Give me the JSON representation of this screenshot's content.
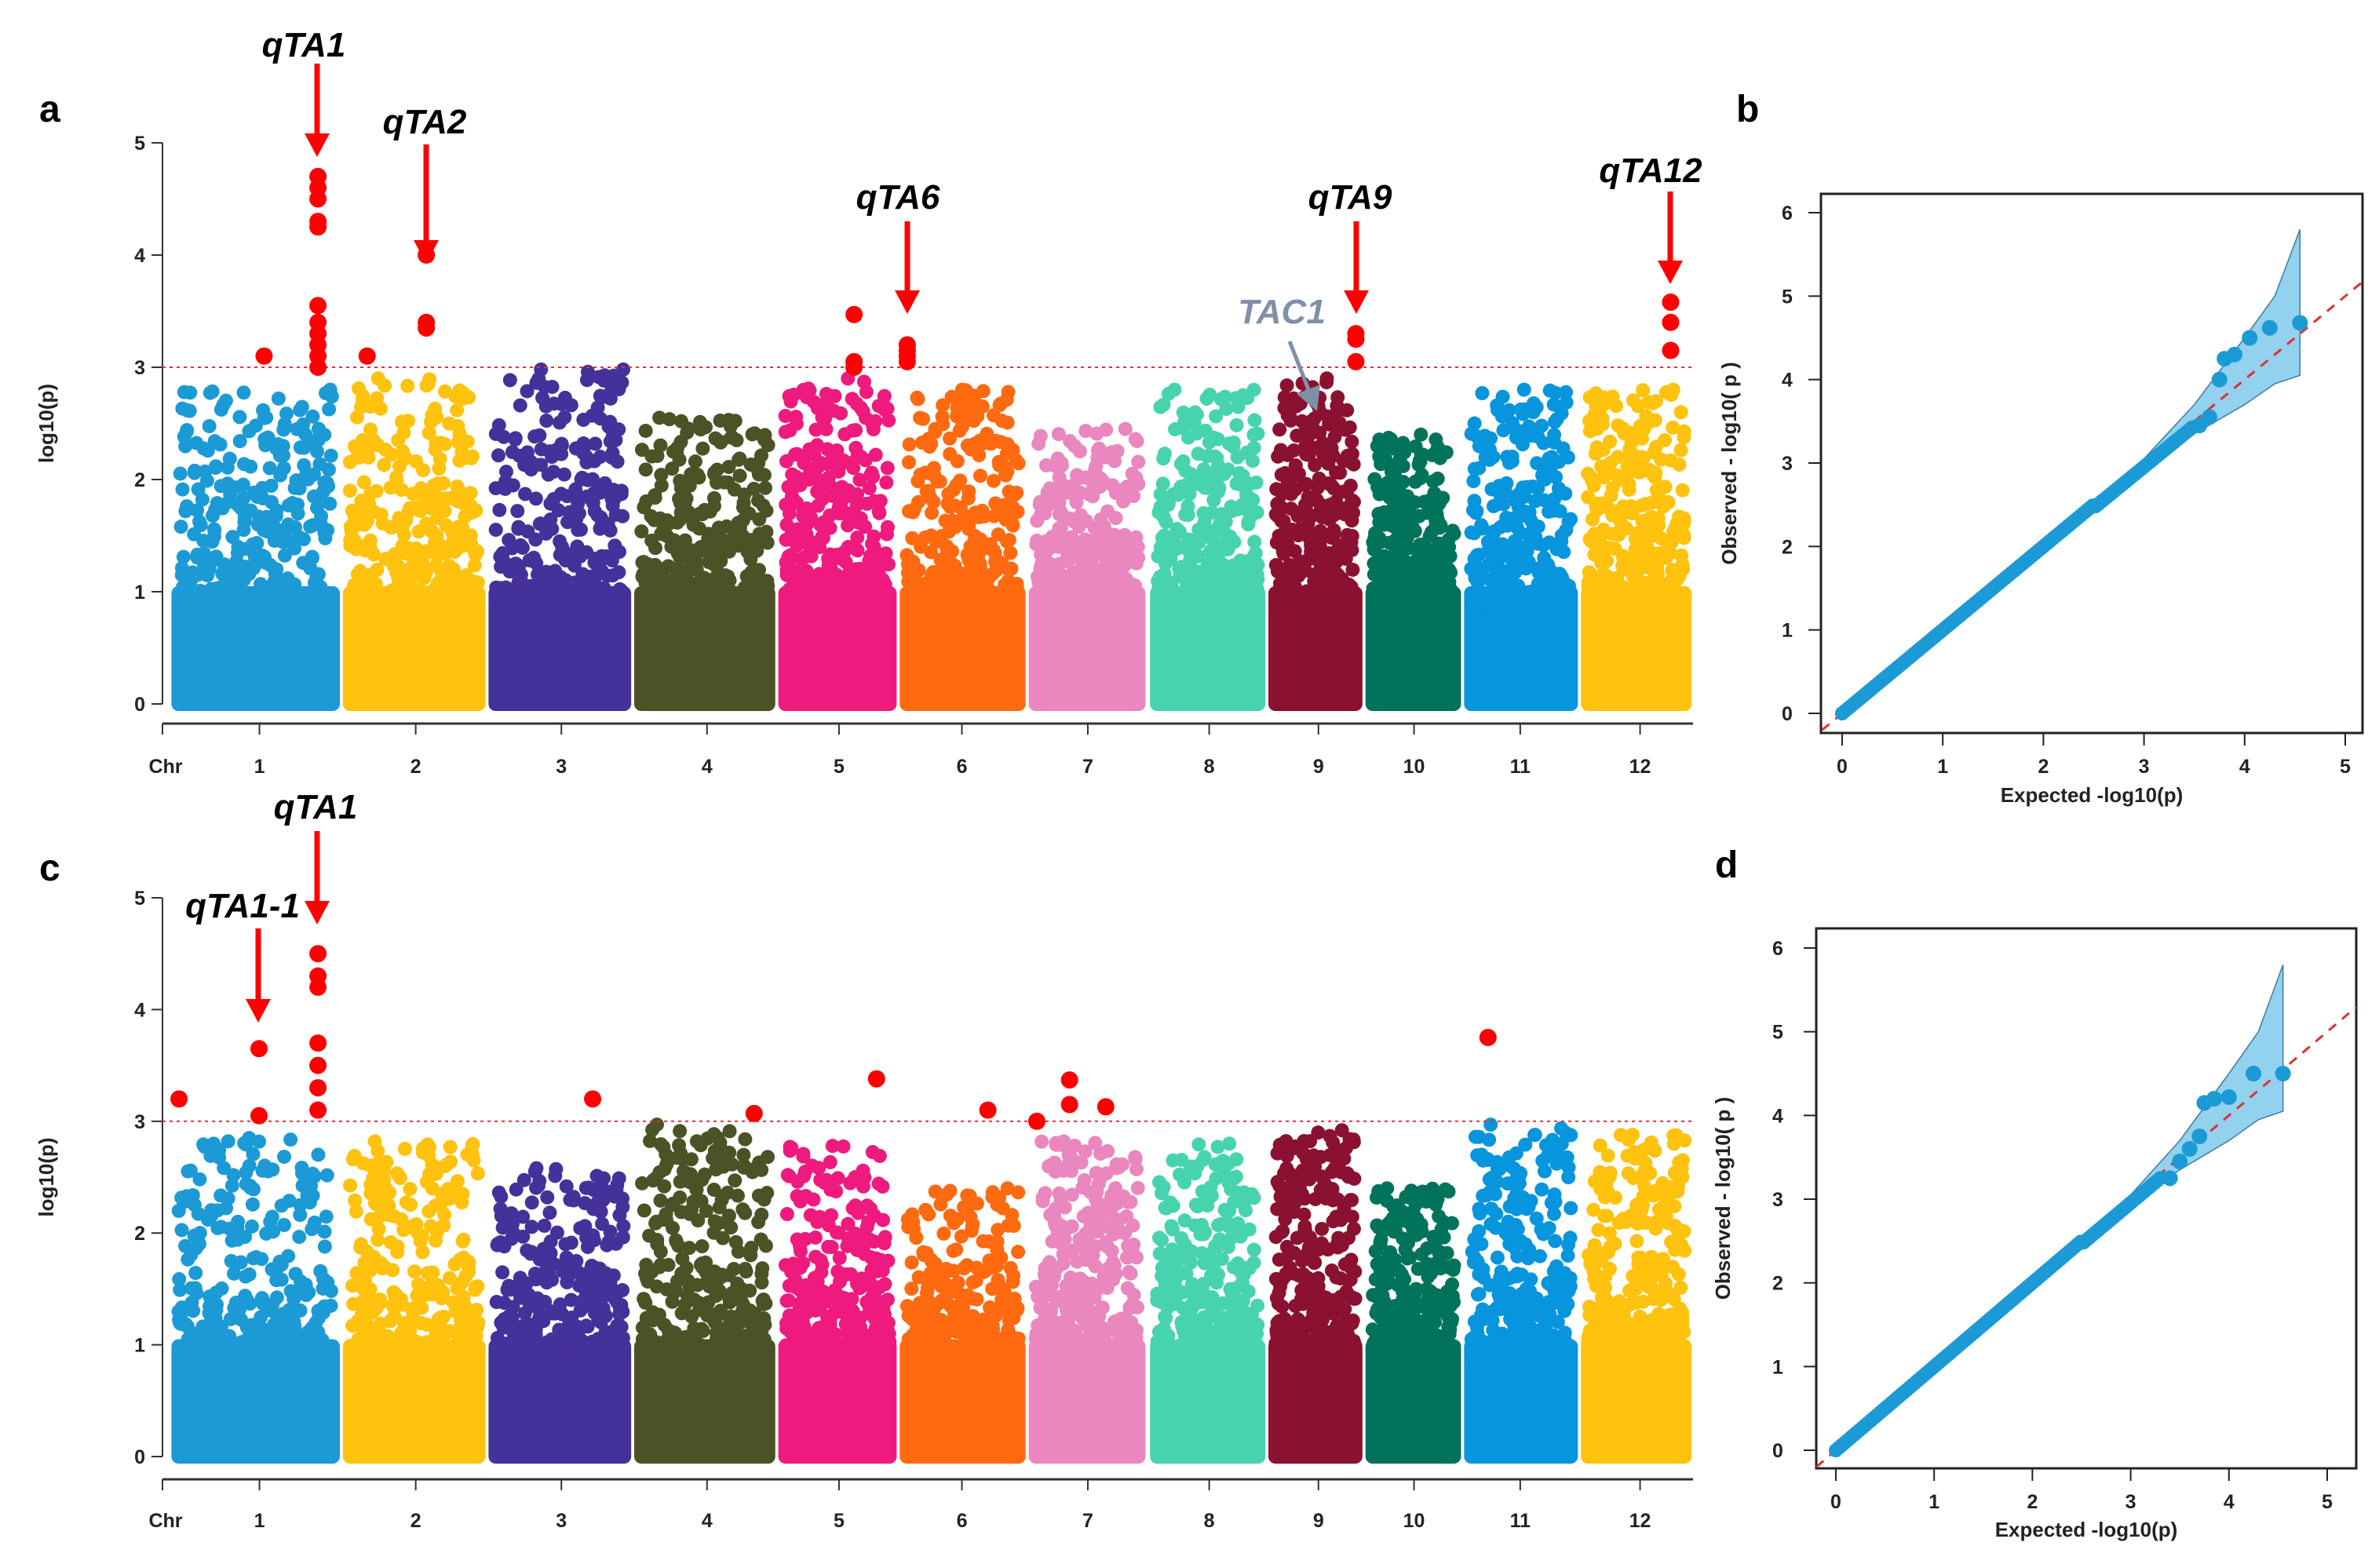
{
  "chart_data": [
    {
      "panel": "a",
      "type": "scatter",
      "ylabel": "log10(p)",
      "xlabel": "Chr",
      "categories": [
        "1",
        "2",
        "3",
        "4",
        "5",
        "6",
        "7",
        "8",
        "9",
        "10",
        "11",
        "12"
      ],
      "ylim": [
        0,
        5
      ],
      "yticks": [
        "0",
        "1",
        "2",
        "3",
        "4",
        "5"
      ],
      "threshold": 3,
      "chromosome_colors": [
        "#1B9AD6",
        "#FFC20E",
        "#45319A",
        "#4B5326",
        "#EE1A7D",
        "#FF6A10",
        "#E987BE",
        "#47D3AE",
        "#8B1130",
        "#00735A",
        "#0795DD",
        "#FFC20E"
      ],
      "significant_color": "#FF0000",
      "max_nonsignificant": [
        2.8,
        2.9,
        2.98,
        2.55,
        2.9,
        2.8,
        2.45,
        2.8,
        2.9,
        2.4,
        2.8,
        2.8
      ],
      "significant_points": [
        {
          "chr": 1,
          "pos": 0.55,
          "values": [
            3.1
          ]
        },
        {
          "chr": 1,
          "pos": 0.87,
          "values": [
            4.7,
            4.6,
            4.5,
            4.3,
            4.25,
            3.55,
            3.4,
            3.3,
            3.2,
            3.1,
            3.0
          ]
        },
        {
          "chr": 2,
          "pos": 0.17,
          "values": [
            3.1
          ]
        },
        {
          "chr": 2,
          "pos": 0.585,
          "values": [
            4.0,
            3.4,
            3.35
          ]
        },
        {
          "chr": 5,
          "pos": 0.64,
          "values": [
            3.47,
            3.05,
            3.0
          ]
        },
        {
          "chr": 6,
          "pos": 0.06,
          "values": [
            3.2,
            3.15,
            3.1,
            3.05
          ]
        },
        {
          "chr": 9,
          "pos": 0.93,
          "values": [
            3.3,
            3.25,
            3.05
          ]
        },
        {
          "chr": 12,
          "pos": 0.81,
          "values": [
            3.58,
            3.4,
            3.15
          ]
        }
      ],
      "annotations": [
        {
          "label": "qTA1",
          "color": "#FF0000"
        },
        {
          "label": "qTA2",
          "color": "#FF0000"
        },
        {
          "label": "qTA6",
          "color": "#FF0000"
        },
        {
          "label": "qTA9",
          "color": "#FF0000"
        },
        {
          "label": "qTA12",
          "color": "#FF0000"
        },
        {
          "label": "TAC1",
          "color": "#8090A8"
        }
      ]
    },
    {
      "panel": "b",
      "type": "scatter",
      "xlabel": "Expected -log10(p)",
      "ylabel": "Observed - log10( p )",
      "xlim": [
        0,
        5
      ],
      "ylim": [
        0,
        6
      ],
      "xticks": [
        "0",
        "1",
        "2",
        "3",
        "4",
        "5"
      ],
      "yticks": [
        "0",
        "1",
        "2",
        "3",
        "4",
        "5",
        "6"
      ],
      "point_color": "#1B9AD6",
      "band_color": "#6EC3E8",
      "diagonal_points_up_to": 3.5,
      "tail_points": [
        [
          3.55,
          3.45
        ],
        [
          3.65,
          3.55
        ],
        [
          3.75,
          4.0
        ],
        [
          3.8,
          4.25
        ],
        [
          3.9,
          4.3
        ],
        [
          4.05,
          4.5
        ],
        [
          4.25,
          4.62
        ],
        [
          4.55,
          4.68
        ]
      ],
      "confidence_band": {
        "x": [
          3.0,
          3.5,
          4.0,
          4.3,
          4.55
        ],
        "lower": [
          2.95,
          3.35,
          3.7,
          3.95,
          4.05
        ],
        "upper": [
          3.05,
          3.7,
          4.5,
          5.0,
          5.8
        ]
      }
    },
    {
      "panel": "c",
      "type": "scatter",
      "ylabel": "log10(p)",
      "xlabel": "Chr",
      "categories": [
        "1",
        "2",
        "3",
        "4",
        "5",
        "6",
        "7",
        "8",
        "9",
        "10",
        "11",
        "12"
      ],
      "ylim": [
        0,
        5
      ],
      "yticks": [
        "0",
        "1",
        "2",
        "3",
        "4",
        "5"
      ],
      "threshold": 3,
      "chromosome_colors": [
        "#1B9AD6",
        "#FFC20E",
        "#45319A",
        "#4B5326",
        "#EE1A7D",
        "#FF6A10",
        "#E987BE",
        "#47D3AE",
        "#8B1130",
        "#00735A",
        "#0795DD",
        "#FFC20E"
      ],
      "significant_color": "#FF0000",
      "max_nonsignificant": [
        2.85,
        2.82,
        2.58,
        2.97,
        2.78,
        2.4,
        2.82,
        2.8,
        2.92,
        2.4,
        2.97,
        2.88
      ],
      "significant_points": [
        {
          "chr": 1,
          "pos": 0.045,
          "values": [
            3.2
          ]
        },
        {
          "chr": 1,
          "pos": 0.52,
          "values": [
            3.65,
            3.05
          ]
        },
        {
          "chr": 1,
          "pos": 0.87,
          "values": [
            4.5,
            4.3,
            4.2,
            3.7,
            3.5,
            3.3,
            3.1
          ]
        },
        {
          "chr": 3,
          "pos": 0.73,
          "values": [
            3.2
          ]
        },
        {
          "chr": 4,
          "pos": 0.85,
          "values": [
            3.07
          ]
        },
        {
          "chr": 5,
          "pos": 0.83,
          "values": [
            3.38
          ]
        },
        {
          "chr": 6,
          "pos": 0.7,
          "values": [
            3.1
          ]
        },
        {
          "chr": 7,
          "pos": 0.07,
          "values": [
            3.0
          ]
        },
        {
          "chr": 7,
          "pos": 0.35,
          "values": [
            3.37,
            3.15
          ]
        },
        {
          "chr": 7,
          "pos": 0.66,
          "values": [
            3.13
          ]
        },
        {
          "chr": 11,
          "pos": 0.21,
          "values": [
            3.75
          ]
        }
      ],
      "annotations": [
        {
          "label": "qTA1",
          "color": "#FF0000"
        },
        {
          "label": "qTA1-1",
          "color": "#FF0000"
        }
      ]
    },
    {
      "panel": "d",
      "type": "scatter",
      "xlabel": "Expected -log10(p)",
      "ylabel": "Observed - log10( p )",
      "xlim": [
        0,
        5
      ],
      "ylim": [
        0,
        6
      ],
      "xticks": [
        "0",
        "1",
        "2",
        "3",
        "4",
        "5"
      ],
      "yticks": [
        "0",
        "1",
        "2",
        "3",
        "4",
        "5",
        "6"
      ],
      "point_color": "#1B9AD6",
      "band_color": "#6EC3E8",
      "diagonal_points_up_to": 3.3,
      "tail_points": [
        [
          3.4,
          3.25
        ],
        [
          3.5,
          3.45
        ],
        [
          3.6,
          3.6
        ],
        [
          3.7,
          3.75
        ],
        [
          3.75,
          4.15
        ],
        [
          3.85,
          4.2
        ],
        [
          4.0,
          4.22
        ],
        [
          4.25,
          4.5
        ],
        [
          4.55,
          4.5
        ]
      ],
      "confidence_band": {
        "x": [
          3.0,
          3.5,
          4.0,
          4.3,
          4.55
        ],
        "lower": [
          2.95,
          3.35,
          3.7,
          3.95,
          4.05
        ],
        "upper": [
          3.05,
          3.7,
          4.5,
          5.0,
          5.8
        ]
      }
    }
  ],
  "panel_labels": {
    "a": "a",
    "b": "b",
    "c": "c",
    "d": "d"
  }
}
